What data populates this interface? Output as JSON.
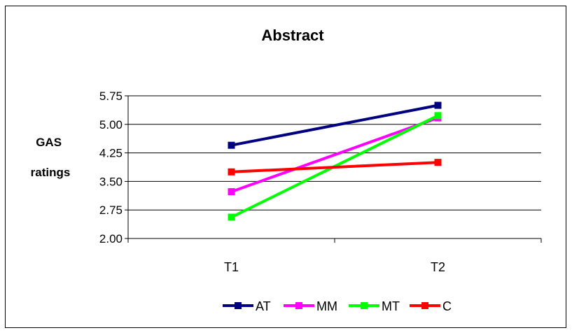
{
  "chart_data": {
    "type": "line",
    "title": "Abstract",
    "ylabel": "GAS ratings",
    "xlabel": "",
    "categories": [
      "T1",
      "T2"
    ],
    "ylim": [
      2.0,
      5.75
    ],
    "yticks": [
      "2.00",
      "2.75",
      "3.50",
      "4.25",
      "5.00",
      "5.75"
    ],
    "grid": true,
    "legend": "bottom",
    "series": [
      {
        "name": "AT",
        "color": "#000080",
        "values": [
          4.45,
          5.5
        ]
      },
      {
        "name": "MM",
        "color": "#ff00ff",
        "values": [
          3.23,
          5.17
        ]
      },
      {
        "name": "MT",
        "color": "#00ff00",
        "values": [
          2.56,
          5.23
        ]
      },
      {
        "name": "C",
        "color": "#ff0000",
        "values": [
          3.75,
          4.0
        ]
      }
    ]
  }
}
